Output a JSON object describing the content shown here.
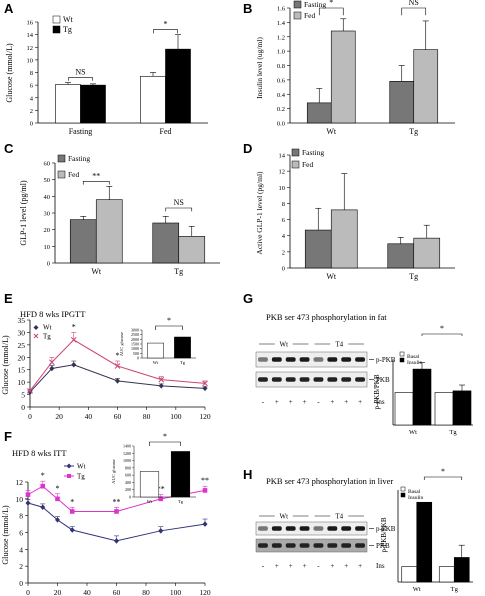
{
  "panels": [
    {
      "id": "A",
      "type": "bar",
      "ylabel": "Glucose (mmol/L)",
      "ylim": [
        0,
        16
      ],
      "yticks": [
        0,
        2,
        4,
        6,
        8,
        10,
        12,
        14,
        16
      ],
      "categories": [
        "Fasting",
        "Fed"
      ],
      "series": [
        {
          "name": "Wt",
          "color": "#ffffff",
          "values": [
            6.1,
            7.4
          ],
          "errors": [
            0.3,
            0.6
          ]
        },
        {
          "name": "Tg",
          "color": "#000000",
          "values": [
            6.0,
            11.7
          ],
          "errors": [
            0.2,
            2.3
          ]
        }
      ],
      "annotations": [
        {
          "label": "NS",
          "category": "Fasting"
        },
        {
          "label": "*",
          "category": "Fed"
        }
      ]
    },
    {
      "id": "B",
      "type": "bar",
      "ylabel": "Insulin level (ug/ml)",
      "ylim": [
        0,
        1.6
      ],
      "yticks": [
        0,
        0.2,
        0.4,
        0.6,
        0.8,
        1.0,
        1.2,
        1.4,
        1.6
      ],
      "categories": [
        "Wt",
        "Tg"
      ],
      "series": [
        {
          "name": "Fasting",
          "color": "#777777",
          "values": [
            0.28,
            0.58
          ],
          "errors": [
            0.2,
            0.22
          ]
        },
        {
          "name": "Fed",
          "color": "#bbbbbb",
          "values": [
            1.28,
            1.02
          ],
          "errors": [
            0.17,
            0.4
          ]
        }
      ],
      "annotations": [
        {
          "label": "*",
          "category": "Wt"
        },
        {
          "label": "NS",
          "category": "Tg"
        }
      ]
    },
    {
      "id": "C",
      "type": "bar",
      "ylabel": "GLP-1 level (pg/ml)",
      "ylim": [
        0,
        60
      ],
      "yticks": [
        0,
        10,
        20,
        30,
        40,
        50,
        60
      ],
      "categories": [
        "Wt",
        "Tg"
      ],
      "series": [
        {
          "name": "Fasting",
          "color": "#777777",
          "values": [
            26,
            24
          ],
          "errors": [
            2,
            4
          ]
        },
        {
          "name": "Fed",
          "color": "#bbbbbb",
          "values": [
            38,
            16
          ],
          "errors": [
            8,
            6
          ]
        }
      ],
      "annotations": [
        {
          "label": "**",
          "category": "Wt"
        },
        {
          "label": "NS",
          "category": "Tg"
        }
      ]
    },
    {
      "id": "D",
      "type": "bar",
      "ylabel": "Active GLP-1 level (pg/ml)",
      "ylim": [
        0,
        14
      ],
      "yticks": [
        0,
        2,
        4,
        6,
        8,
        10,
        12,
        14
      ],
      "categories": [
        "Wt",
        "Tg"
      ],
      "series": [
        {
          "name": "Fasting",
          "color": "#777777",
          "values": [
            4.7,
            3.0
          ],
          "errors": [
            2.7,
            0.8
          ]
        },
        {
          "name": "Fed",
          "color": "#bbbbbb",
          "values": [
            7.2,
            3.7
          ],
          "errors": [
            4.5,
            1.6
          ]
        }
      ],
      "annotations": []
    },
    {
      "id": "E",
      "type": "line",
      "title": "HFD 8 wks IPGTT",
      "ylabel": "Glucose (mmol/L)",
      "ylim": [
        0,
        35
      ],
      "yticks": [
        0,
        5,
        10,
        15,
        20,
        25,
        30,
        35
      ],
      "xlim": [
        0,
        120
      ],
      "xticks": [
        0,
        20,
        40,
        60,
        80,
        100,
        120
      ],
      "series": [
        {
          "name": "Wt",
          "color": "#333355",
          "marker": "diamond",
          "x": [
            0,
            15,
            30,
            60,
            90,
            120
          ],
          "y": [
            6,
            15.5,
            17,
            10.5,
            8.5,
            7.5
          ],
          "errors": [
            0.5,
            1.2,
            1.5,
            1,
            0.8,
            0.6
          ]
        },
        {
          "name": "Tg",
          "color": "#cc4477",
          "marker": "x",
          "x": [
            0,
            15,
            30,
            60,
            90,
            120
          ],
          "y": [
            6.5,
            18,
            27,
            16.5,
            11,
            9.5
          ],
          "errors": [
            0.5,
            2,
            3,
            2,
            1.2,
            1
          ]
        }
      ],
      "stars": [
        {
          "x": 30,
          "label": "*"
        },
        {
          "x": 60,
          "label": "*"
        }
      ],
      "inset": {
        "ylabel": "AUC glucose",
        "ylim": [
          0,
          3000
        ],
        "yticks": [
          0,
          500,
          1000,
          1500,
          2000,
          2500,
          3000
        ],
        "categories": [
          "Wt",
          "Tg"
        ],
        "values": [
          1600,
          2250
        ],
        "colors": [
          "#ffffff",
          "#000000"
        ],
        "star": "*"
      }
    },
    {
      "id": "F",
      "type": "line",
      "title": "HFD 8 wks ITT",
      "ylabel": "Glucose (mmol/L)",
      "ylim": [
        0,
        12
      ],
      "yticks": [
        0,
        2,
        4,
        6,
        8,
        10,
        12
      ],
      "xlim": [
        0,
        120
      ],
      "xticks": [
        0,
        20,
        40,
        60,
        80,
        100,
        120
      ],
      "series": [
        {
          "name": "Wt",
          "color": "#333377",
          "marker": "diamond",
          "x": [
            0,
            10,
            20,
            30,
            60,
            90,
            120
          ],
          "y": [
            9.5,
            9,
            7.5,
            6.3,
            5,
            6.2,
            7
          ],
          "errors": [
            0.4,
            0.4,
            0.4,
            0.4,
            0.6,
            0.5,
            0.6
          ]
        },
        {
          "name": "Tg",
          "color": "#dd33cc",
          "marker": "square",
          "x": [
            0,
            10,
            20,
            30,
            60,
            90,
            120
          ],
          "y": [
            10.5,
            11.5,
            10,
            8.5,
            8.5,
            10,
            11
          ],
          "errors": [
            0.5,
            0.6,
            0.6,
            0.5,
            0.5,
            0.5,
            0.5
          ]
        }
      ],
      "stars": [
        {
          "x": 10,
          "label": "*"
        },
        {
          "x": 20,
          "label": "*"
        },
        {
          "x": 30,
          "label": "*"
        },
        {
          "x": 60,
          "label": "**"
        },
        {
          "x": 90,
          "label": "**"
        },
        {
          "x": 120,
          "label": "**"
        }
      ],
      "inset": {
        "ylabel": "AUC glucose",
        "ylim": [
          0,
          1400
        ],
        "yticks": [
          0,
          200,
          400,
          600,
          800,
          1000,
          1200,
          1400
        ],
        "categories": [
          "Wt",
          "Tg"
        ],
        "values": [
          700,
          1250
        ],
        "colors": [
          "#ffffff",
          "#000000"
        ],
        "star": "*"
      }
    },
    {
      "id": "G",
      "title": "PKB ser 473 phosphorylation in fat",
      "blot": {
        "groups": [
          "Wt",
          "T4"
        ],
        "bands": [
          "p-PKB",
          "PKB"
        ],
        "lane_marks": [
          "-",
          "+",
          "+",
          "+",
          "-",
          "+",
          "+",
          "+"
        ],
        "lane_label": "Ins"
      },
      "type": "bar",
      "ylabel": "p-PKB/PKB",
      "ylim": [
        0,
        2
      ],
      "categories": [
        "Wt",
        "Tg"
      ],
      "series": [
        {
          "name": "Basal",
          "color": "#ffffff",
          "values": [
            1,
            1
          ],
          "errors": [
            0,
            0
          ]
        },
        {
          "name": "Insulin",
          "color": "#000000",
          "values": [
            1.72,
            1.05
          ],
          "errors": [
            0.2,
            0.18
          ]
        }
      ],
      "star": "*"
    },
    {
      "id": "H",
      "title": "PKB ser 473 phosphorylation in liver",
      "blot": {
        "groups": [
          "Wt",
          "T4"
        ],
        "bands": [
          "p-PKB",
          "PKB"
        ],
        "lane_marks": [
          "-",
          "+",
          "+",
          "+",
          "-",
          "+",
          "+",
          "+"
        ],
        "lane_label": "Ins"
      },
      "type": "bar",
      "ylabel": "p-PKB/PKB",
      "ylim": [
        0,
        6
      ],
      "categories": [
        "Wt",
        "Tg"
      ],
      "series": [
        {
          "name": "Basal",
          "color": "#ffffff",
          "values": [
            1,
            1
          ],
          "errors": [
            0,
            0
          ]
        },
        {
          "name": "Insulin",
          "color": "#000000",
          "values": [
            5.2,
            1.6
          ],
          "errors": [
            0,
            0.8
          ]
        }
      ],
      "star": "*"
    }
  ]
}
